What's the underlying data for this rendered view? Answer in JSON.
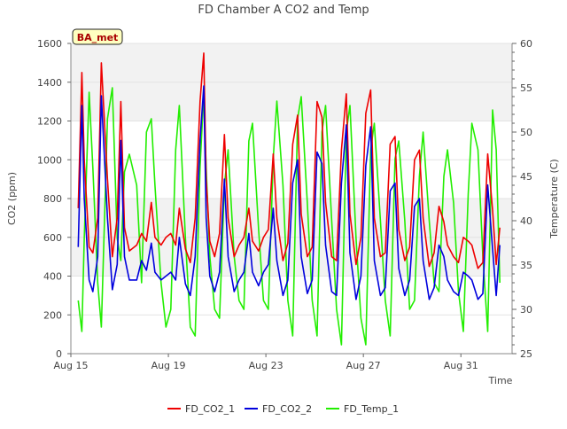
{
  "chart_data": {
    "type": "line",
    "title": "FD Chamber A CO2 and Temp",
    "badge": "BA_met",
    "xlabel": "Time",
    "ylabel": "CO2 (ppm)",
    "y2label": "Temperature (C)",
    "xlim": [
      15,
      33.1
    ],
    "ylim": [
      0,
      1600
    ],
    "y2lim": [
      25,
      60
    ],
    "x_ticks": [
      {
        "x": 15,
        "label": "Aug 15"
      },
      {
        "x": 19,
        "label": "Aug 19"
      },
      {
        "x": 23,
        "label": "Aug 23"
      },
      {
        "x": 27,
        "label": "Aug 27"
      },
      {
        "x": 31,
        "label": "Aug 31"
      }
    ],
    "y_ticks": [
      "0",
      "200",
      "400",
      "600",
      "800",
      "1000",
      "1200",
      "1400",
      "1600"
    ],
    "y2_ticks": [
      "25",
      "30",
      "35",
      "40",
      "45",
      "50",
      "55",
      "60"
    ],
    "legend_position": "bottom",
    "series": [
      {
        "name": "FD_CO2_1",
        "color": "#ee0000",
        "axis": "left",
        "x": [
          15.3,
          15.45,
          15.55,
          15.75,
          15.9,
          16.1,
          16.25,
          16.5,
          16.7,
          16.9,
          17.05,
          17.2,
          17.4,
          17.7,
          17.9,
          18.1,
          18.3,
          18.45,
          18.7,
          18.9,
          19.1,
          19.3,
          19.45,
          19.7,
          19.9,
          20.1,
          20.3,
          20.45,
          20.55,
          20.7,
          20.9,
          21.1,
          21.3,
          21.45,
          21.7,
          21.9,
          22.1,
          22.3,
          22.45,
          22.7,
          22.9,
          23.1,
          23.3,
          23.45,
          23.7,
          23.9,
          24.1,
          24.3,
          24.45,
          24.7,
          24.9,
          25.1,
          25.3,
          25.45,
          25.7,
          25.9,
          26.1,
          26.3,
          26.45,
          26.7,
          26.9,
          27.1,
          27.3,
          27.45,
          27.7,
          27.9,
          28.1,
          28.3,
          28.45,
          28.7,
          28.9,
          29.1,
          29.3,
          29.45,
          29.7,
          29.9,
          30.1,
          30.3,
          30.45,
          30.7,
          30.9,
          31.1,
          31.3,
          31.45,
          31.7,
          31.9,
          32.1,
          32.3,
          32.45,
          32.6
        ],
        "values": [
          750,
          1450,
          1000,
          550,
          520,
          700,
          1500,
          900,
          500,
          700,
          1300,
          650,
          530,
          560,
          620,
          580,
          780,
          600,
          560,
          600,
          620,
          560,
          750,
          540,
          470,
          700,
          1300,
          1550,
          900,
          580,
          500,
          620,
          1130,
          700,
          500,
          560,
          600,
          750,
          580,
          530,
          600,
          640,
          1030,
          700,
          480,
          570,
          1080,
          1230,
          720,
          500,
          550,
          1300,
          1220,
          780,
          500,
          480,
          1050,
          1340,
          720,
          460,
          600,
          1240,
          1360,
          700,
          500,
          520,
          1080,
          1120,
          640,
          480,
          550,
          1000,
          1050,
          700,
          450,
          520,
          760,
          680,
          560,
          500,
          470,
          600,
          580,
          560,
          440,
          470,
          1030,
          740,
          460,
          650
        ]
      },
      {
        "name": "FD_CO2_2",
        "color": "#0000dd",
        "axis": "left",
        "x": [
          15.3,
          15.45,
          15.55,
          15.75,
          15.9,
          16.1,
          16.25,
          16.5,
          16.7,
          16.9,
          17.05,
          17.2,
          17.4,
          17.7,
          17.9,
          18.1,
          18.3,
          18.45,
          18.7,
          18.9,
          19.1,
          19.3,
          19.45,
          19.7,
          19.9,
          20.1,
          20.3,
          20.45,
          20.55,
          20.7,
          20.9,
          21.1,
          21.3,
          21.45,
          21.7,
          21.9,
          22.1,
          22.3,
          22.45,
          22.7,
          22.9,
          23.1,
          23.3,
          23.45,
          23.7,
          23.9,
          24.1,
          24.3,
          24.45,
          24.7,
          24.9,
          25.1,
          25.3,
          25.45,
          25.7,
          25.9,
          26.1,
          26.3,
          26.45,
          26.7,
          26.9,
          27.1,
          27.3,
          27.45,
          27.7,
          27.9,
          28.1,
          28.3,
          28.45,
          28.7,
          28.9,
          29.1,
          29.3,
          29.45,
          29.7,
          29.9,
          30.1,
          30.3,
          30.45,
          30.7,
          30.9,
          31.1,
          31.3,
          31.45,
          31.7,
          31.9,
          32.1,
          32.3,
          32.45,
          32.6
        ],
        "values": [
          550,
          1280,
          800,
          380,
          320,
          500,
          1330,
          700,
          330,
          460,
          1100,
          500,
          380,
          380,
          480,
          430,
          570,
          420,
          380,
          400,
          420,
          380,
          600,
          360,
          300,
          500,
          1100,
          1380,
          700,
          400,
          320,
          420,
          900,
          500,
          320,
          380,
          420,
          620,
          420,
          350,
          420,
          460,
          750,
          480,
          300,
          380,
          880,
          1000,
          500,
          310,
          380,
          1040,
          980,
          560,
          320,
          300,
          880,
          1180,
          520,
          280,
          400,
          970,
          1170,
          480,
          300,
          340,
          840,
          880,
          440,
          300,
          380,
          760,
          800,
          480,
          280,
          340,
          560,
          500,
          380,
          320,
          300,
          420,
          400,
          380,
          280,
          310,
          870,
          540,
          300,
          560
        ]
      },
      {
        "name": "FD_Temp_1",
        "color": "#22ee00",
        "axis": "right",
        "x": [
          15.3,
          15.45,
          15.55,
          15.75,
          15.9,
          16.1,
          16.25,
          16.5,
          16.7,
          16.9,
          17.05,
          17.2,
          17.4,
          17.7,
          17.9,
          18.1,
          18.3,
          18.45,
          18.7,
          18.9,
          19.1,
          19.3,
          19.45,
          19.7,
          19.9,
          20.1,
          20.3,
          20.45,
          20.55,
          20.7,
          20.9,
          21.1,
          21.3,
          21.45,
          21.7,
          21.9,
          22.1,
          22.3,
          22.45,
          22.7,
          22.9,
          23.1,
          23.3,
          23.45,
          23.7,
          23.9,
          24.1,
          24.3,
          24.45,
          24.7,
          24.9,
          25.1,
          25.3,
          25.45,
          25.7,
          25.9,
          26.1,
          26.3,
          26.45,
          26.7,
          26.9,
          27.1,
          27.3,
          27.45,
          27.7,
          27.9,
          28.1,
          28.3,
          28.45,
          28.7,
          28.9,
          29.1,
          29.3,
          29.45,
          29.7,
          29.9,
          30.1,
          30.3,
          30.45,
          30.7,
          30.9,
          31.1,
          31.3,
          31.45,
          31.7,
          31.9,
          32.1,
          32.3,
          32.45,
          32.6
        ],
        "values": [
          31,
          27.5,
          38,
          54.5,
          46,
          33,
          28,
          51.5,
          55,
          38,
          35.5,
          45.5,
          47.5,
          44,
          33,
          50,
          51.5,
          44,
          33,
          28,
          30,
          48,
          53,
          38,
          28,
          27,
          46,
          54.5,
          46,
          36,
          30,
          29,
          44,
          48,
          36,
          31,
          30,
          49,
          51,
          39,
          31,
          30,
          47,
          53.5,
          44,
          31,
          27,
          51.5,
          54,
          42,
          31,
          27,
          50,
          53,
          40,
          30,
          26,
          50,
          53,
          38,
          29,
          26,
          48,
          51,
          40,
          31,
          27,
          47,
          49,
          40,
          30,
          31,
          45,
          50,
          40,
          33,
          32,
          45,
          48,
          42,
          32,
          27.5,
          43,
          51,
          48,
          36,
          27.5,
          52.5,
          48,
          33
        ]
      }
    ]
  }
}
